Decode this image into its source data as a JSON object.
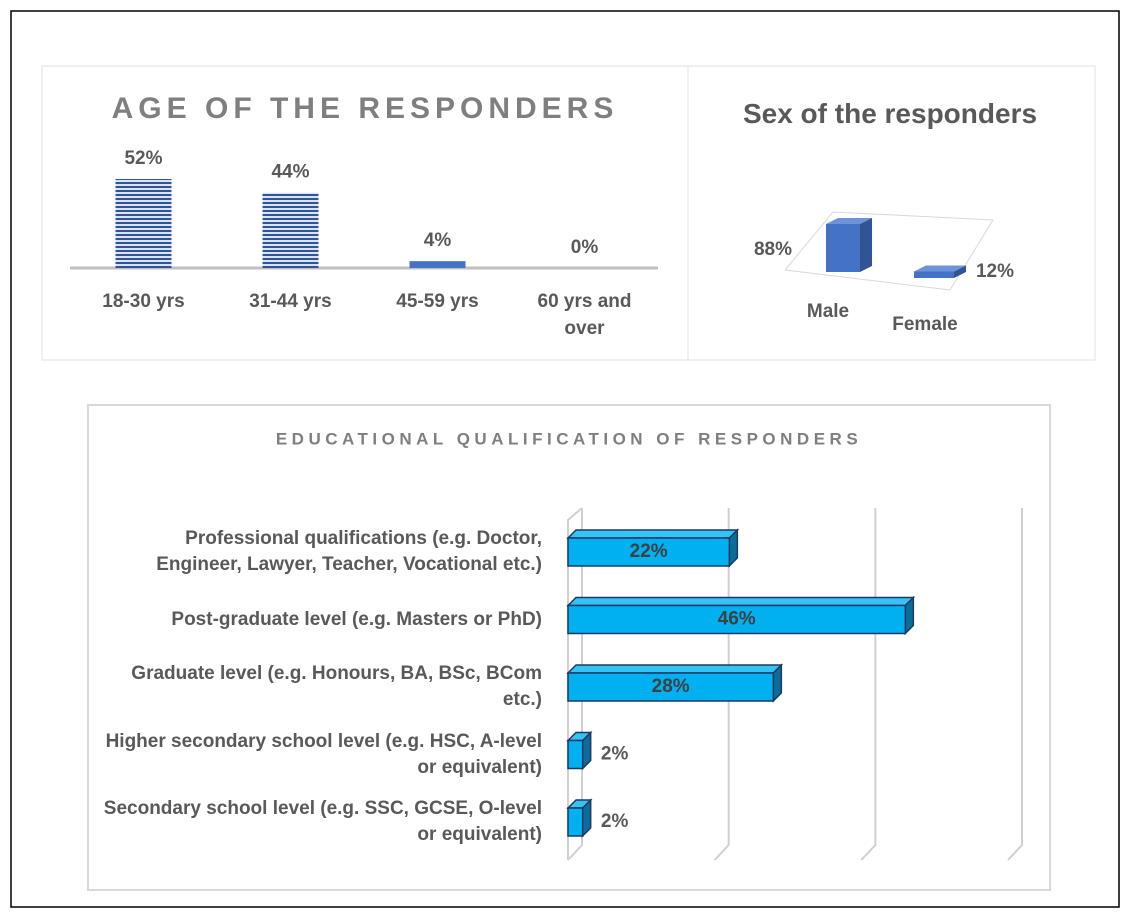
{
  "chart_data": [
    {
      "type": "bar",
      "title": "AGE OF THE RESPONDERS",
      "categories": [
        "18-30 yrs",
        "31-44 yrs",
        "45-59 yrs",
        "60 yrs and over"
      ],
      "values": [
        52,
        44,
        4,
        0
      ],
      "value_labels": [
        "52%",
        "44%",
        "4%",
        "0%"
      ],
      "color": "#4472c4"
    },
    {
      "type": "bar3d",
      "title": "Sex of the responders",
      "categories": [
        "Male",
        "Female"
      ],
      "values": [
        88,
        12
      ],
      "value_labels": [
        "88%",
        "12%"
      ],
      "color": "#4472c4"
    },
    {
      "type": "hbar3d",
      "title": "EDUCATIONAL QUALIFICATION OF RESPONDERS",
      "categories": [
        "Professional qualifications (e.g. Doctor, Engineer, Lawyer, Teacher, Vocational etc.)",
        "Post-graduate level (e.g. Masters or PhD)",
        "Graduate level (e.g. Honours, BA, BSc, BCom etc.)",
        "Higher secondary school level (e.g. HSC, A-level or equivalent)",
        "Secondary school level (e.g. SSC, GCSE, O-level or equivalent)"
      ],
      "values": [
        22,
        46,
        28,
        2,
        2
      ],
      "value_labels": [
        "22%",
        "46%",
        "28%",
        "2%",
        "2%"
      ],
      "color": "#00b0f0",
      "xlim": [
        0,
        60
      ],
      "xticks": [
        0,
        20,
        40,
        60
      ],
      "grid": true
    }
  ]
}
